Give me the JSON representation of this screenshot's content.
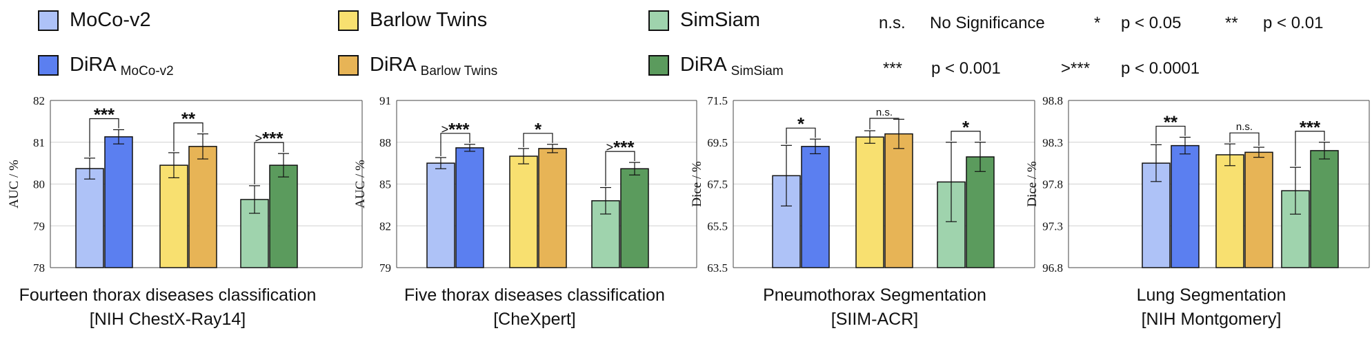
{
  "legend": {
    "series": [
      {
        "label": "MoCo-v2",
        "sub": "",
        "color": "#aec2f7"
      },
      {
        "label": "DiRA",
        "sub": "MoCo-v2",
        "color": "#5b7ff0"
      },
      {
        "label": "Barlow Twins",
        "sub": "",
        "color": "#f8e070"
      },
      {
        "label": "DiRA",
        "sub": "Barlow Twins",
        "color": "#e7b456"
      },
      {
        "label": "SimSiam",
        "sub": "",
        "color": "#9fd3ad"
      },
      {
        "label": "DiRA",
        "sub": "SimSiam",
        "color": "#5b9b5d"
      }
    ],
    "significance": [
      {
        "symbol": "n.s.",
        "meaning": "No Significance"
      },
      {
        "symbol": "*",
        "meaning": "p < 0.05"
      },
      {
        "symbol": "**",
        "meaning": "p < 0.01"
      },
      {
        "symbol": "***",
        "meaning": "p < 0.001"
      },
      {
        "symbol": ">***",
        "meaning": "p < 0.0001"
      }
    ]
  },
  "chart_data": [
    {
      "type": "bar",
      "title_line1": "Fourteen thorax diseases classification",
      "title_line2": "[NIH ChestX-Ray14]",
      "ylabel": "AUC / %",
      "ylim": [
        78,
        82
      ],
      "yticks": [
        "78",
        "79",
        "80",
        "81",
        "82"
      ],
      "grid": true,
      "groups": [
        {
          "baseline": 80.37,
          "baseline_err": 0.25,
          "dira": 81.13,
          "dira_err": 0.17,
          "significance": "***"
        },
        {
          "baseline": 80.45,
          "baseline_err": 0.3,
          "dira": 80.9,
          "dira_err": 0.3,
          "significance": "**"
        },
        {
          "baseline": 79.63,
          "baseline_err": 0.33,
          "dira": 80.45,
          "dira_err": 0.28,
          "significance": ">***"
        }
      ]
    },
    {
      "type": "bar",
      "title_line1": "Five thorax diseases classification",
      "title_line2": "[CheXpert]",
      "ylabel": "AUC / %",
      "ylim": [
        79,
        91
      ],
      "yticks": [
        "79",
        "82",
        "85",
        "88",
        "91"
      ],
      "grid": true,
      "groups": [
        {
          "baseline": 86.5,
          "baseline_err": 0.4,
          "dira": 87.6,
          "dira_err": 0.25,
          "significance": ">***"
        },
        {
          "baseline": 87.0,
          "baseline_err": 0.55,
          "dira": 87.55,
          "dira_err": 0.3,
          "significance": "*"
        },
        {
          "baseline": 83.8,
          "baseline_err": 0.95,
          "dira": 86.1,
          "dira_err": 0.45,
          "significance": ">***"
        }
      ]
    },
    {
      "type": "bar",
      "title_line1": "Pneumothorax Segmentation",
      "title_line2": "[SIIM-ACR]",
      "ylabel": "Dice / %",
      "ylim": [
        63.5,
        71.5
      ],
      "yticks": [
        "63.5",
        "65.5",
        "67.5",
        "69.5",
        "71.5"
      ],
      "grid": true,
      "groups": [
        {
          "baseline": 67.9,
          "baseline_err": 1.45,
          "dira": 69.3,
          "dira_err": 0.35,
          "significance": "*"
        },
        {
          "baseline": 69.75,
          "baseline_err": 0.3,
          "dira": 69.9,
          "dira_err": 0.7,
          "significance": "n.s."
        },
        {
          "baseline": 67.6,
          "baseline_err": 1.9,
          "dira": 68.8,
          "dira_err": 0.7,
          "significance": "*"
        }
      ]
    },
    {
      "type": "bar",
      "title_line1": "Lung Segmentation",
      "title_line2": "[NIH Montgomery]",
      "ylabel": "Dice / %",
      "ylim": [
        96.8,
        98.8
      ],
      "yticks": [
        "96.8",
        "97.3",
        "97.8",
        "98.3",
        "98.8"
      ],
      "grid": true,
      "groups": [
        {
          "baseline": 98.05,
          "baseline_err": 0.22,
          "dira": 98.26,
          "dira_err": 0.1,
          "significance": "**"
        },
        {
          "baseline": 98.15,
          "baseline_err": 0.13,
          "dira": 98.18,
          "dira_err": 0.06,
          "significance": "n.s."
        },
        {
          "baseline": 97.72,
          "baseline_err": 0.28,
          "dira": 98.2,
          "dira_err": 0.1,
          "significance": "***"
        }
      ]
    }
  ]
}
